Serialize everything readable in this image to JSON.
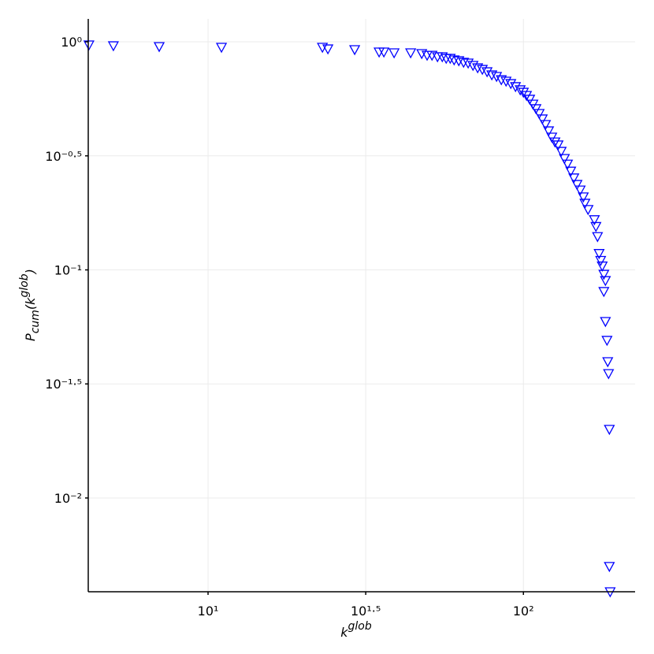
{
  "chart_data": {
    "type": "scatter",
    "marker": "triangle-down",
    "color": "#0000ff",
    "xscale": "log",
    "yscale": "log",
    "grid": true,
    "xlabel": {
      "base": "k",
      "sup": "glob"
    },
    "ylabel": {
      "base": "P",
      "sub": "cum",
      "mid": "(k",
      "sup": "glob",
      "end": ")"
    },
    "xlim": [
      4.17,
      226
    ],
    "ylim": [
      0.00388,
      1.26
    ],
    "xticks": [
      {
        "value": 10,
        "label": "10¹"
      },
      {
        "value": 31.6228,
        "label": "10¹·⁵"
      },
      {
        "value": 100,
        "label": "10²"
      }
    ],
    "yticks": [
      {
        "value": 1,
        "label": "10⁰"
      },
      {
        "value": 0.316228,
        "label": "10⁻⁰·⁵"
      },
      {
        "value": 0.1,
        "label": "10⁻¹"
      },
      {
        "value": 0.0316228,
        "label": "10⁻¹·⁵"
      },
      {
        "value": 0.01,
        "label": "10⁻²"
      }
    ],
    "x": [
      4.19,
      5.01,
      7.0,
      11.03,
      23.05,
      23.99,
      29.17,
      34.87,
      36.1,
      38.9,
      43.9,
      47.6,
      49.5,
      51.3,
      53.4,
      55.3,
      56.9,
      58.6,
      60.3,
      62.4,
      64.6,
      66.8,
      69.2,
      71.6,
      74.1,
      76.7,
      79.4,
      82.2,
      85.1,
      88.1,
      91.2,
      94.4,
      97.7,
      100,
      102.3,
      104.7,
      107.2,
      109.6,
      112.2,
      114.8,
      117.5,
      120.2,
      123.0,
      125.9,
      128.8,
      131.8,
      134.9,
      138.0,
      141.3,
      144.5,
      147.9,
      151.4,
      154.9,
      156.7,
      160.3,
      167.9,
      169.8,
      171.8,
      173.8,
      175.8,
      177.8,
      179.9,
      182.0,
      179.9,
      182.0,
      184.1,
      185.1,
      186.2,
      187.3,
      187.3,
      188.4
    ],
    "values": [
      0.969,
      0.961,
      0.953,
      0.946,
      0.946,
      0.931,
      0.924,
      0.902,
      0.902,
      0.895,
      0.895,
      0.888,
      0.873,
      0.873,
      0.86,
      0.86,
      0.846,
      0.846,
      0.833,
      0.826,
      0.813,
      0.807,
      0.788,
      0.769,
      0.757,
      0.739,
      0.716,
      0.705,
      0.682,
      0.672,
      0.656,
      0.636,
      0.616,
      0.601,
      0.582,
      0.56,
      0.533,
      0.509,
      0.485,
      0.459,
      0.434,
      0.407,
      0.382,
      0.364,
      0.353,
      0.331,
      0.308,
      0.291,
      0.271,
      0.253,
      0.237,
      0.224,
      0.209,
      0.196,
      0.184,
      0.166,
      0.155,
      0.14,
      0.118,
      0.11,
      0.104,
      0.0957,
      0.0898,
      0.0804,
      0.0594,
      0.0491,
      0.0396,
      0.0351,
      0.02,
      0.00501,
      0.00388
    ]
  }
}
